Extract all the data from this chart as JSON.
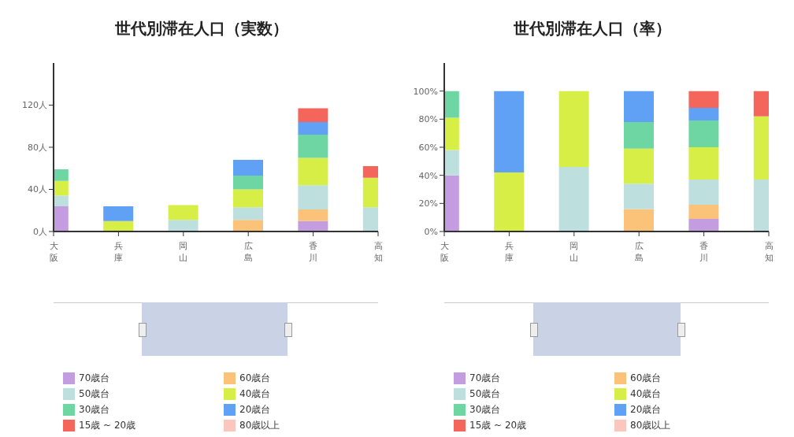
{
  "chart_data": [
    {
      "type": "bar",
      "title": "世代別滞在人口（実数）",
      "stacked": true,
      "legend": "bottom",
      "categories": [
        "大阪",
        "兵庫",
        "岡山",
        "広島",
        "香川",
        "高知"
      ],
      "ylim": [
        0,
        160
      ],
      "yticks": [
        {
          "value": 0,
          "label": "0人"
        },
        {
          "value": 40,
          "label": "40人"
        },
        {
          "value": 80,
          "label": "80人"
        },
        {
          "value": 120,
          "label": "120人"
        }
      ],
      "series": [
        {
          "name": "70歳台",
          "color": "#c39de0",
          "values": [
            24,
            null,
            null,
            null,
            10,
            null
          ]
        },
        {
          "name": "60歳台",
          "color": "#fbc27a",
          "values": [
            null,
            null,
            null,
            11,
            11,
            null
          ]
        },
        {
          "name": "50歳台",
          "color": "#bde0de",
          "values": [
            10,
            null,
            11,
            12,
            23,
            23
          ]
        },
        {
          "name": "40歳台",
          "color": "#d7ee47",
          "values": [
            14,
            10,
            14,
            17,
            26,
            28
          ]
        },
        {
          "name": "30歳台",
          "color": "#6dd6a2",
          "values": [
            11,
            null,
            null,
            13,
            22,
            null
          ]
        },
        {
          "name": "20歳台",
          "color": "#60a0f5",
          "values": [
            null,
            14,
            null,
            15,
            12,
            null
          ]
        },
        {
          "name": "15歳 ~ 20歳",
          "color": "#f4665c",
          "values": [
            null,
            null,
            null,
            null,
            13,
            11
          ]
        },
        {
          "name": "80歳以上",
          "color": "#f9c7bd",
          "values": [
            null,
            null,
            null,
            null,
            null,
            null
          ]
        }
      ]
    },
    {
      "type": "bar",
      "title": "世代別滞在人口（率）",
      "stacked": true,
      "legend": "bottom",
      "categories": [
        "大阪",
        "兵庫",
        "岡山",
        "広島",
        "香川",
        "高知"
      ],
      "ylim": [
        0,
        120
      ],
      "yticks": [
        {
          "value": 0,
          "label": "0%"
        },
        {
          "value": 20,
          "label": "20%"
        },
        {
          "value": 40,
          "label": "40%"
        },
        {
          "value": 60,
          "label": "60%"
        },
        {
          "value": 80,
          "label": "80%"
        },
        {
          "value": 100,
          "label": "100%"
        }
      ],
      "series": [
        {
          "name": "70歳台",
          "color": "#c39de0",
          "values": [
            40,
            null,
            null,
            null,
            9,
            null
          ]
        },
        {
          "name": "60歳台",
          "color": "#fbc27a",
          "values": [
            null,
            null,
            null,
            16,
            10,
            null
          ]
        },
        {
          "name": "50歳台",
          "color": "#bde0de",
          "values": [
            18,
            null,
            46,
            18,
            18,
            37
          ]
        },
        {
          "name": "40歳台",
          "color": "#d7ee47",
          "values": [
            23,
            42,
            54,
            25,
            23,
            45
          ]
        },
        {
          "name": "30歳台",
          "color": "#6dd6a2",
          "values": [
            19,
            null,
            null,
            19,
            19,
            null
          ]
        },
        {
          "name": "20歳台",
          "color": "#60a0f5",
          "values": [
            null,
            58,
            null,
            22,
            9,
            null
          ]
        },
        {
          "name": "15歳 ~ 20歳",
          "color": "#f4665c",
          "values": [
            null,
            null,
            null,
            null,
            12,
            18
          ]
        },
        {
          "name": "80歳以上",
          "color": "#f9c7bd",
          "values": [
            null,
            null,
            null,
            null,
            null,
            null
          ]
        }
      ]
    }
  ]
}
